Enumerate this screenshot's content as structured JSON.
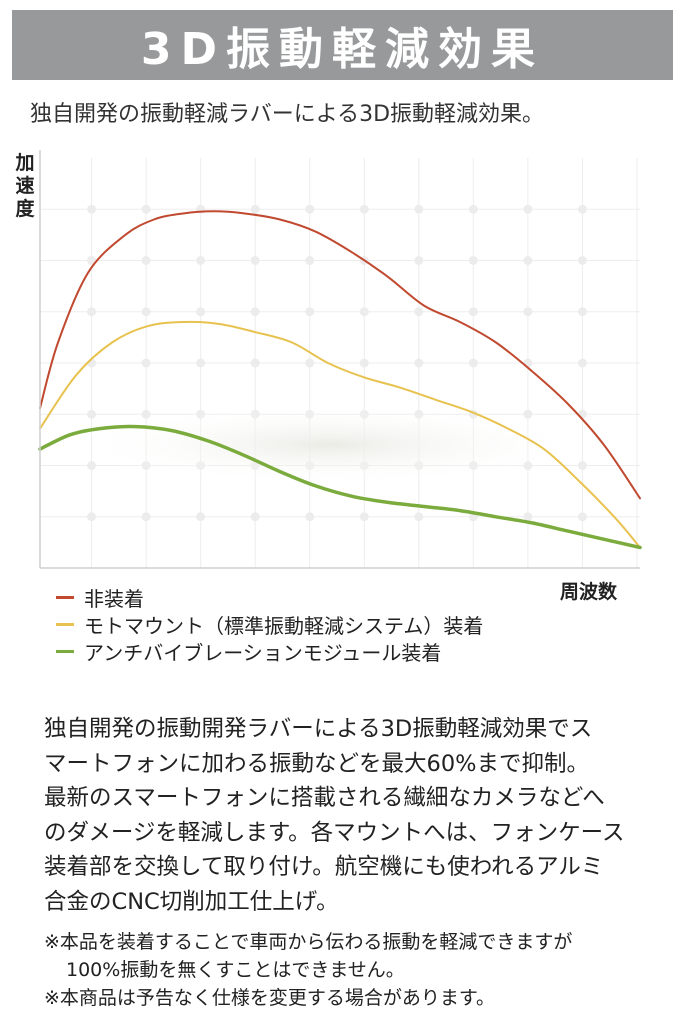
{
  "banner": {
    "title": "3D振動軽減効果"
  },
  "subtitle": "独自開発の振動軽減ラバーによる3D振動軽減効果。",
  "chart_data": {
    "type": "line",
    "title": "",
    "xlabel": "周波数",
    "ylabel": "加速度",
    "grid": true,
    "legend_position": "bottom-left",
    "ylim": [
      0,
      100
    ],
    "xlim": [
      0,
      100
    ],
    "series": [
      {
        "name": "非装着",
        "color": "#c0492f",
        "x": [
          0,
          3,
          8,
          14,
          19,
          24,
          29,
          34,
          40,
          46,
          52,
          58,
          64,
          70,
          76,
          82,
          88,
          94,
          100
        ],
        "y": [
          39,
          55,
          72,
          81,
          85,
          86.5,
          87,
          86.5,
          85,
          82,
          77,
          71,
          64,
          60,
          55,
          48,
          40,
          30,
          17
        ]
      },
      {
        "name": "モトマウント（標準振動軽減システム）装着",
        "color": "#e8c24e",
        "x": [
          0,
          6,
          12,
          18,
          24,
          30,
          36,
          42,
          48,
          54,
          60,
          66,
          72,
          78,
          84,
          90,
          96,
          100
        ],
        "y": [
          34,
          47,
          55,
          59,
          60,
          59.5,
          57.5,
          55,
          50,
          46.5,
          44,
          41,
          38,
          34,
          29,
          21,
          12,
          5
        ]
      },
      {
        "name": "アンチバイブレーションモジュール装着",
        "color": "#7bab3d",
        "x": [
          0,
          5,
          10,
          16,
          22,
          28,
          34,
          40,
          46,
          52,
          58,
          64,
          70,
          76,
          82,
          88,
          94,
          100
        ],
        "y": [
          29,
          32.5,
          34,
          34.5,
          33.5,
          31,
          27.5,
          23.5,
          20,
          17.5,
          16,
          15,
          14,
          12.5,
          11,
          9,
          7,
          5
        ]
      }
    ]
  },
  "legend": [
    {
      "label": "非装着",
      "color": "#c0492f"
    },
    {
      "label": "モトマウント（標準振動軽減システム）装着",
      "color": "#e8c24e"
    },
    {
      "label": "アンチバイブレーションモジュール装着",
      "color": "#7bab3d"
    }
  ],
  "body": {
    "lines": [
      "独自開発の振動開発ラバーによる3D振動軽減効果でス",
      "マートフォンに加わる振動などを最大60%まで抑制。",
      "最新のスマートフォンに搭載される繊細なカメラなどへ",
      "のダメージを軽減します。各マウントへは、フォンケース",
      "装着部を交換して取り付け。航空機にも使われるアルミ",
      "合金のCNC切削加工仕上げ。"
    ]
  },
  "notes": {
    "line1": "※本品を装着することで車両から伝わる振動を軽減できますが",
    "line2": "100%振動を無くすことはできません。",
    "line3": "※本商品は予告なく仕様を変更する場合があります。"
  }
}
